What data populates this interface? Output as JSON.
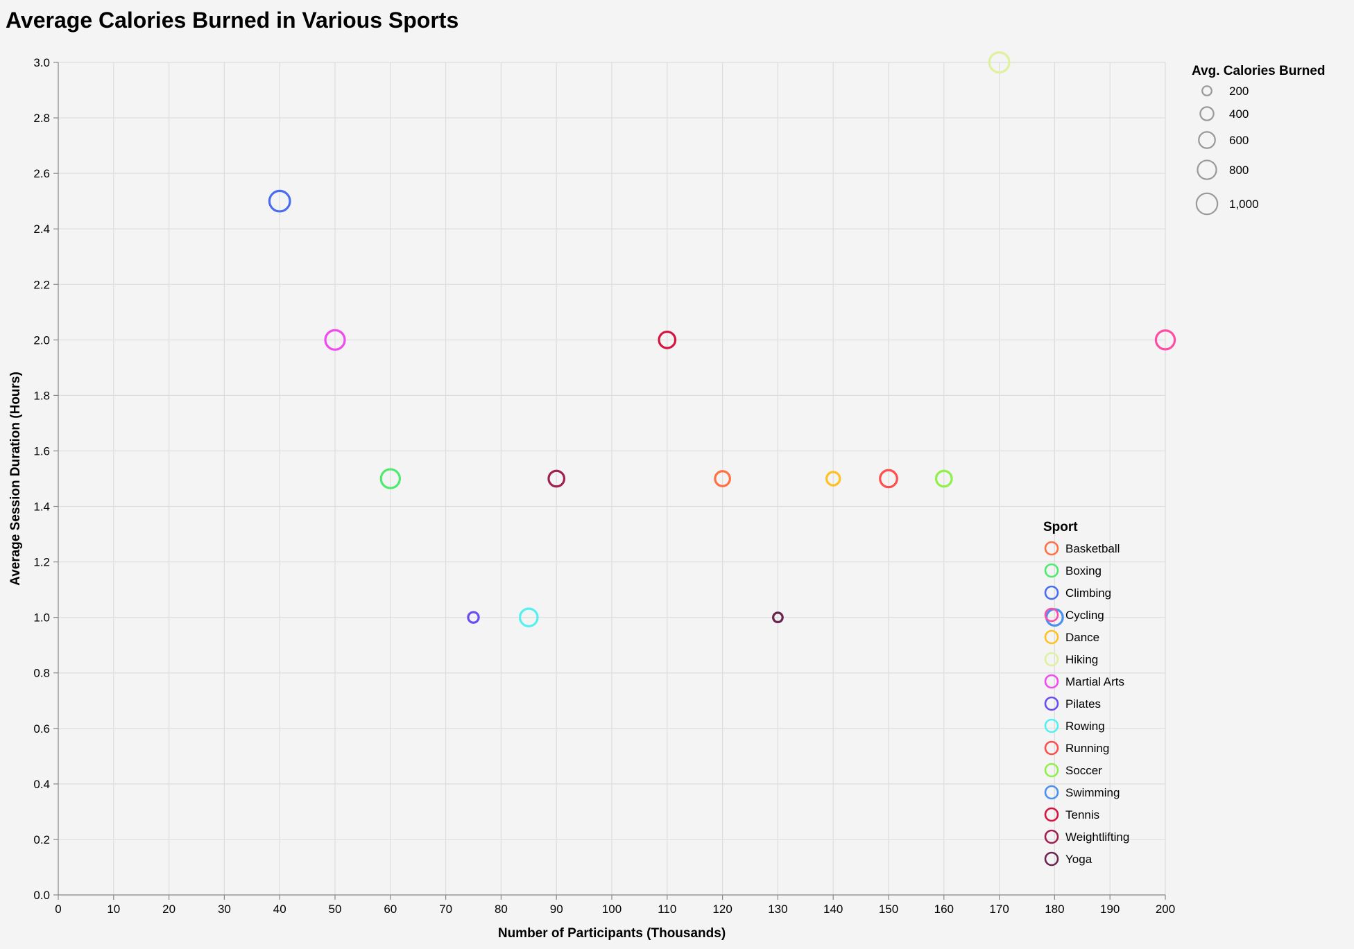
{
  "chart_data": {
    "type": "scatter",
    "title": "Average Calories Burned in Various Sports",
    "xlabel": "Number of Participants (Thousands)",
    "ylabel": "Average Session Duration (Hours)",
    "xlim": [
      0,
      200
    ],
    "ylim": [
      0,
      3
    ],
    "x_ticks": [
      0,
      10,
      20,
      30,
      40,
      50,
      60,
      70,
      80,
      90,
      100,
      110,
      120,
      130,
      140,
      150,
      160,
      170,
      180,
      190,
      200
    ],
    "y_ticks": [
      0,
      0.2,
      0.4,
      0.6,
      0.8,
      1.0,
      1.2,
      1.4,
      1.6,
      1.8,
      2.0,
      2.2,
      2.4,
      2.6,
      2.8,
      3.0
    ],
    "x_tick_labels": [
      "0",
      "10",
      "20",
      "30",
      "40",
      "50",
      "60",
      "70",
      "80",
      "90",
      "100",
      "110",
      "120",
      "130",
      "140",
      "150",
      "160",
      "170",
      "180",
      "190",
      "200"
    ],
    "y_tick_labels": [
      "0.0",
      "0.2",
      "0.4",
      "0.6",
      "0.8",
      "1.0",
      "1.2",
      "1.4",
      "1.6",
      "1.8",
      "2.0",
      "2.2",
      "2.4",
      "2.6",
      "2.8",
      "3.0"
    ],
    "grid": true,
    "size_legend": {
      "title": "Avg. Calories Burned",
      "values": [
        200,
        400,
        600,
        800,
        1000
      ],
      "labels": [
        "200",
        "400",
        "600",
        "800",
        "1,000"
      ]
    },
    "color_legend": {
      "title": "Sport",
      "placement": "bottom-right"
    },
    "series": [
      {
        "name": "Basketball",
        "color": "#ff7043",
        "participants": 120,
        "duration": 1.5,
        "calories": 500
      },
      {
        "name": "Boxing",
        "color": "#4dea6e",
        "participants": 60,
        "duration": 1.5,
        "calories": 800
      },
      {
        "name": "Climbing",
        "color": "#4a6cf0",
        "participants": 40,
        "duration": 2.5,
        "calories": 950
      },
      {
        "name": "Cycling",
        "color": "#ff4da6",
        "participants": 200,
        "duration": 2.0,
        "calories": 800
      },
      {
        "name": "Dance",
        "color": "#ffc020",
        "participants": 140,
        "duration": 1.5,
        "calories": 400
      },
      {
        "name": "Hiking",
        "color": "#dff0a0",
        "participants": 170,
        "duration": 3.0,
        "calories": 900
      },
      {
        "name": "Martial Arts",
        "color": "#f04af0",
        "participants": 50,
        "duration": 2.0,
        "calories": 850
      },
      {
        "name": "Pilates",
        "color": "#6a4cf0",
        "participants": 75,
        "duration": 1.0,
        "calories": 250
      },
      {
        "name": "Rowing",
        "color": "#55f0f0",
        "participants": 85,
        "duration": 1.0,
        "calories": 700
      },
      {
        "name": "Running",
        "color": "#ff4d4d",
        "participants": 150,
        "duration": 1.5,
        "calories": 650
      },
      {
        "name": "Soccer",
        "color": "#8ff04a",
        "participants": 160,
        "duration": 1.5,
        "calories": 550
      },
      {
        "name": "Swimming",
        "color": "#4a90f0",
        "participants": 180,
        "duration": 1.0,
        "calories": 600
      },
      {
        "name": "Tennis",
        "color": "#d6123e",
        "participants": 110,
        "duration": 2.0,
        "calories": 600
      },
      {
        "name": "Weightlifting",
        "color": "#a02050",
        "participants": 90,
        "duration": 1.5,
        "calories": 550
      },
      {
        "name": "Yoga",
        "color": "#6a2450",
        "participants": 130,
        "duration": 1.0,
        "calories": 200
      }
    ]
  }
}
